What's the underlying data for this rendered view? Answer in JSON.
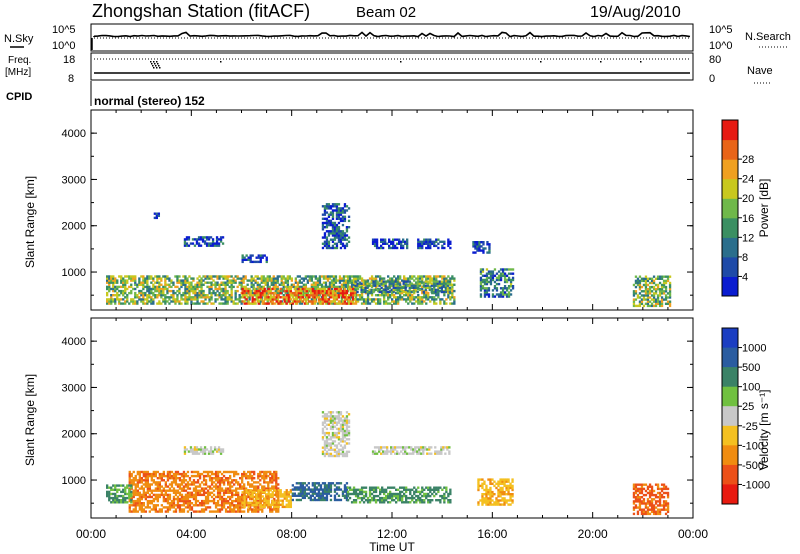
{
  "header": {
    "station": "Zhongshan Station (fitACF)",
    "beam": "Beam 02",
    "date": "19/Aug/2010"
  },
  "top_panels": {
    "nsky_label": "N.Sky",
    "nsearch_label": "N.Search",
    "freq_label_1": "Freq.",
    "freq_label_2": "[MHz]",
    "nave_label": "Nave",
    "cpid_label": "CPID",
    "cpid_value": "normal (stereo) 152",
    "noise_ticks_left": [
      "10^5",
      "10^0"
    ],
    "noise_ticks_right": [
      "10^5",
      "10^0"
    ],
    "freq_ticks": [
      "18",
      "8"
    ],
    "nave_ticks": [
      "80",
      "0"
    ]
  },
  "chart_data": [
    {
      "type": "heatmap",
      "name": "power",
      "ylabel": "Slant Range [km]",
      "x_ticks": [
        "00:00",
        "04:00",
        "08:00",
        "12:00",
        "16:00",
        "20:00",
        "00:00"
      ],
      "y_ticks": [
        "1000",
        "2000",
        "3000",
        "4000"
      ],
      "ylim": [
        180,
        4500
      ],
      "xlim_hours": [
        0,
        24
      ],
      "colorbar": {
        "label": "Power [dB]",
        "ticks": [
          "4",
          "8",
          "12",
          "16",
          "20",
          "24",
          "28"
        ],
        "colors": [
          "#0a1cd0",
          "#1e4aa8",
          "#2a6e8c",
          "#3a8f62",
          "#6fb84a",
          "#c8c81e",
          "#f0a020",
          "#e86418",
          "#e61a12"
        ]
      },
      "echo_regions": [
        {
          "t0": 0.6,
          "t1": 14.5,
          "r0": 300,
          "r1": 900,
          "level": 0.5
        },
        {
          "t0": 6.0,
          "t1": 10.5,
          "r0": 300,
          "r1": 650,
          "level": 0.85
        },
        {
          "t0": 10.5,
          "t1": 14.3,
          "r0": 550,
          "r1": 800,
          "level": 0.35
        },
        {
          "t0": 3.7,
          "t1": 5.3,
          "r0": 1550,
          "r1": 1750,
          "level": 0.1
        },
        {
          "t0": 6.0,
          "t1": 7.0,
          "r0": 1200,
          "r1": 1350,
          "level": 0.1
        },
        {
          "t0": 9.2,
          "t1": 10.3,
          "r0": 1500,
          "r1": 2450,
          "level": 0.15
        },
        {
          "t0": 11.2,
          "t1": 12.6,
          "r0": 1500,
          "r1": 1700,
          "level": 0.1
        },
        {
          "t0": 13.0,
          "t1": 14.3,
          "r0": 1500,
          "r1": 1700,
          "level": 0.08
        },
        {
          "t0": 15.2,
          "t1": 15.9,
          "r0": 1400,
          "r1": 1650,
          "level": 0.1
        },
        {
          "t0": 15.5,
          "t1": 16.8,
          "r0": 450,
          "r1": 1050,
          "level": 0.3
        },
        {
          "t0": 21.6,
          "t1": 23.1,
          "r0": 250,
          "r1": 900,
          "level": 0.5
        },
        {
          "t0": 2.5,
          "t1": 2.7,
          "r0": 2150,
          "r1": 2250,
          "level": 0.1
        }
      ]
    },
    {
      "type": "heatmap",
      "name": "velocity",
      "xlabel": "Time UT",
      "ylabel": "Slant Range [km]",
      "x_ticks": [
        "00:00",
        "04:00",
        "08:00",
        "12:00",
        "16:00",
        "20:00",
        "00:00"
      ],
      "y_ticks": [
        "1000",
        "2000",
        "3000",
        "4000"
      ],
      "ylim": [
        180,
        4500
      ],
      "xlim_hours": [
        0,
        24
      ],
      "colorbar": {
        "label": "Velocity [m s⁻¹]",
        "ticks": [
          "1000",
          "500",
          "100",
          "25",
          "-25",
          "-100",
          "-500",
          "-1000"
        ],
        "colors": [
          "#1b3ec2",
          "#2a5ca0",
          "#3a8266",
          "#70c040",
          "#c8c8c8",
          "#f4c020",
          "#f08c10",
          "#ec5018",
          "#e81a10"
        ]
      },
      "echo_regions": [
        {
          "t0": 1.5,
          "t1": 7.5,
          "r0": 300,
          "r1": 1200,
          "v": -0.55
        },
        {
          "t0": 0.6,
          "t1": 1.6,
          "r0": 500,
          "r1": 900,
          "v": 0.4
        },
        {
          "t0": 6.0,
          "t1": 8.0,
          "r0": 400,
          "r1": 800,
          "v": -0.3
        },
        {
          "t0": 8.0,
          "t1": 10.2,
          "r0": 550,
          "r1": 950,
          "v": 0.7
        },
        {
          "t0": 10.2,
          "t1": 14.3,
          "r0": 500,
          "r1": 850,
          "v": 0.45
        },
        {
          "t0": 9.2,
          "t1": 10.3,
          "r0": 1500,
          "r1": 2450,
          "v": 0.0
        },
        {
          "t0": 11.2,
          "t1": 14.3,
          "r0": 1550,
          "r1": 1700,
          "v": 0.0
        },
        {
          "t0": 3.7,
          "t1": 5.3,
          "r0": 1550,
          "r1": 1700,
          "v": 0.0
        },
        {
          "t0": 15.4,
          "t1": 16.8,
          "r0": 450,
          "r1": 1000,
          "v": -0.3
        },
        {
          "t0": 21.6,
          "t1": 23.0,
          "r0": 250,
          "r1": 900,
          "v": -0.7
        }
      ]
    }
  ]
}
